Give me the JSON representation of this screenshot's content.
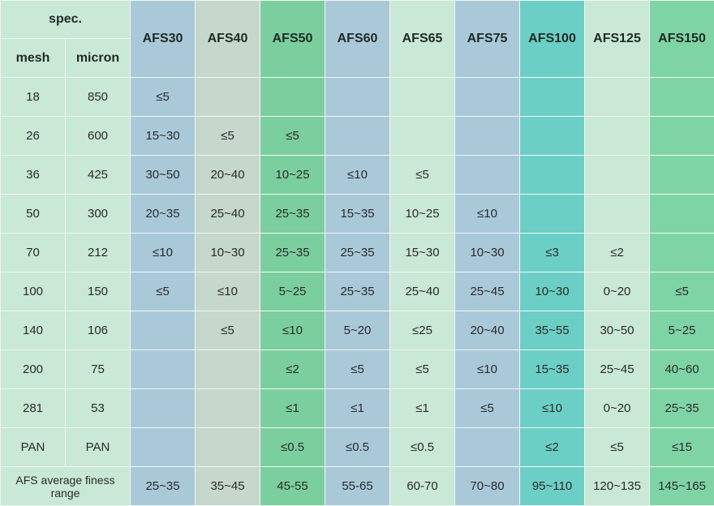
{
  "header": {
    "spec": "spec.",
    "mesh": "mesh",
    "micron": "micron"
  },
  "grades": [
    "AFS30",
    "AFS40",
    "AFS50",
    "AFS60",
    "AFS65",
    "AFS75",
    "AFS100",
    "AFS125",
    "AFS150"
  ],
  "colors": {
    "left_columns": "#c9e8d6",
    "grade_columns": [
      "#a9c9d9",
      "#c6d7cc",
      "#7bcf9e",
      "#a9c9d9",
      "#c9e8d6",
      "#a9c9d9",
      "#6ccfc5",
      "#c9e8d6",
      "#7fd4a6"
    ],
    "grid_lines": "#f1f7f3"
  },
  "rows": [
    {
      "mesh": "18",
      "micron": "850",
      "values": [
        "≤5",
        "",
        "",
        "",
        "",
        "",
        "",
        "",
        ""
      ]
    },
    {
      "mesh": "26",
      "micron": "600",
      "values": [
        "15~30",
        "≤5",
        "≤5",
        "",
        "",
        "",
        "",
        "",
        ""
      ]
    },
    {
      "mesh": "36",
      "micron": "425",
      "values": [
        "30~50",
        "20~40",
        "10~25",
        "≤10",
        "≤5",
        "",
        "",
        "",
        ""
      ]
    },
    {
      "mesh": "50",
      "micron": "300",
      "values": [
        "20~35",
        "25~40",
        "25~35",
        "15~35",
        "10~25",
        "≤10",
        "",
        "",
        ""
      ]
    },
    {
      "mesh": "70",
      "micron": "212",
      "values": [
        "≤10",
        "10~30",
        "25~35",
        "25~35",
        "15~30",
        "10~30",
        "≤3",
        "≤2",
        ""
      ]
    },
    {
      "mesh": "100",
      "micron": "150",
      "values": [
        "≤5",
        "≤10",
        "5~25",
        "25~35",
        "25~40",
        "25~45",
        "10~30",
        "0~20",
        "≤5"
      ]
    },
    {
      "mesh": "140",
      "micron": "106",
      "values": [
        "",
        "≤5",
        "≤10",
        "5~20",
        "≤25",
        "20~40",
        "35~55",
        "30~50",
        "5~25"
      ]
    },
    {
      "mesh": "200",
      "micron": "75",
      "values": [
        "",
        "",
        "≤2",
        "≤5",
        "≤5",
        "≤10",
        "15~35",
        "25~45",
        "40~60"
      ]
    },
    {
      "mesh": "281",
      "micron": "53",
      "values": [
        "",
        "",
        "≤1",
        "≤1",
        "≤1",
        "≤5",
        "≤10",
        "0~20",
        "25~35"
      ]
    },
    {
      "mesh": "PAN",
      "micron": "PAN",
      "values": [
        "",
        "",
        "≤0.5",
        "≤0.5",
        "≤0.5",
        "",
        "≤2",
        "≤5",
        "≤15"
      ]
    }
  ],
  "footer": {
    "label": "AFS average finess range",
    "values": [
      "25~35",
      "35~45",
      "45-55",
      "55-65",
      "60-70",
      "70~80",
      "95~110",
      "120~135",
      "145~165"
    ]
  }
}
